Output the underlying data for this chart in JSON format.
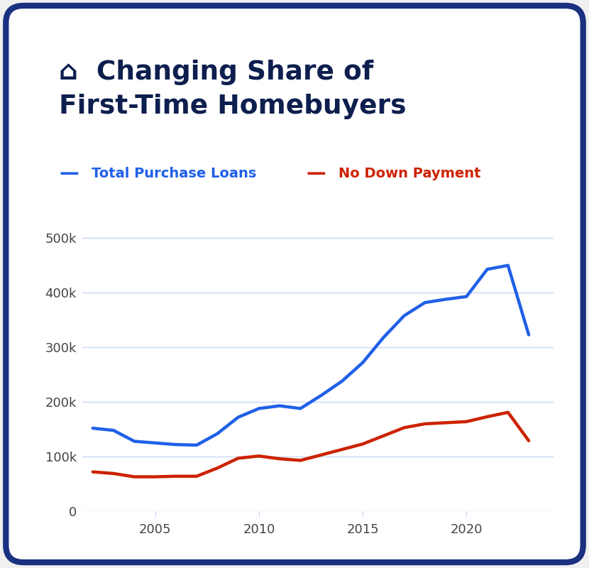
{
  "title_line1": "⌂  Changing Share of",
  "title_line2": "First-Time Homebuyers",
  "title_color": "#0d1f4e",
  "background_color": "#ffffff",
  "card_border_color": "#1a3080",
  "legend_label_1": "Total Purchase Loans",
  "legend_label_2": "No Down Payment",
  "legend_color_1": "#2060e8",
  "legend_color_2": "#cc2200",
  "years": [
    2002,
    2003,
    2004,
    2005,
    2006,
    2007,
    2008,
    2009,
    2010,
    2011,
    2012,
    2013,
    2014,
    2015,
    2016,
    2017,
    2018,
    2019,
    2020,
    2021,
    2022,
    2023
  ],
  "total_purchase": [
    152000,
    148000,
    128000,
    125000,
    122000,
    121000,
    142000,
    172000,
    188000,
    193000,
    188000,
    212000,
    238000,
    272000,
    318000,
    358000,
    382000,
    388000,
    393000,
    443000,
    450000,
    323000
  ],
  "no_down_payment": [
    72000,
    69000,
    63000,
    63000,
    64000,
    64000,
    79000,
    97000,
    101000,
    96000,
    93000,
    103000,
    113000,
    123000,
    138000,
    153000,
    160000,
    162000,
    164000,
    173000,
    181000,
    129000
  ],
  "total_color": "#2060e8",
  "ndp_color": "#cc2200",
  "ylim": [
    0,
    520000
  ],
  "yticks": [
    0,
    100000,
    200000,
    300000,
    400000,
    500000
  ],
  "ytick_labels": [
    "0",
    "100k",
    "200k",
    "300k",
    "400k",
    "500k"
  ],
  "xticks": [
    2005,
    2010,
    2015,
    2020
  ],
  "grid_color": "#c5d8f5",
  "tick_color": "#444444",
  "line_width": 3.2
}
